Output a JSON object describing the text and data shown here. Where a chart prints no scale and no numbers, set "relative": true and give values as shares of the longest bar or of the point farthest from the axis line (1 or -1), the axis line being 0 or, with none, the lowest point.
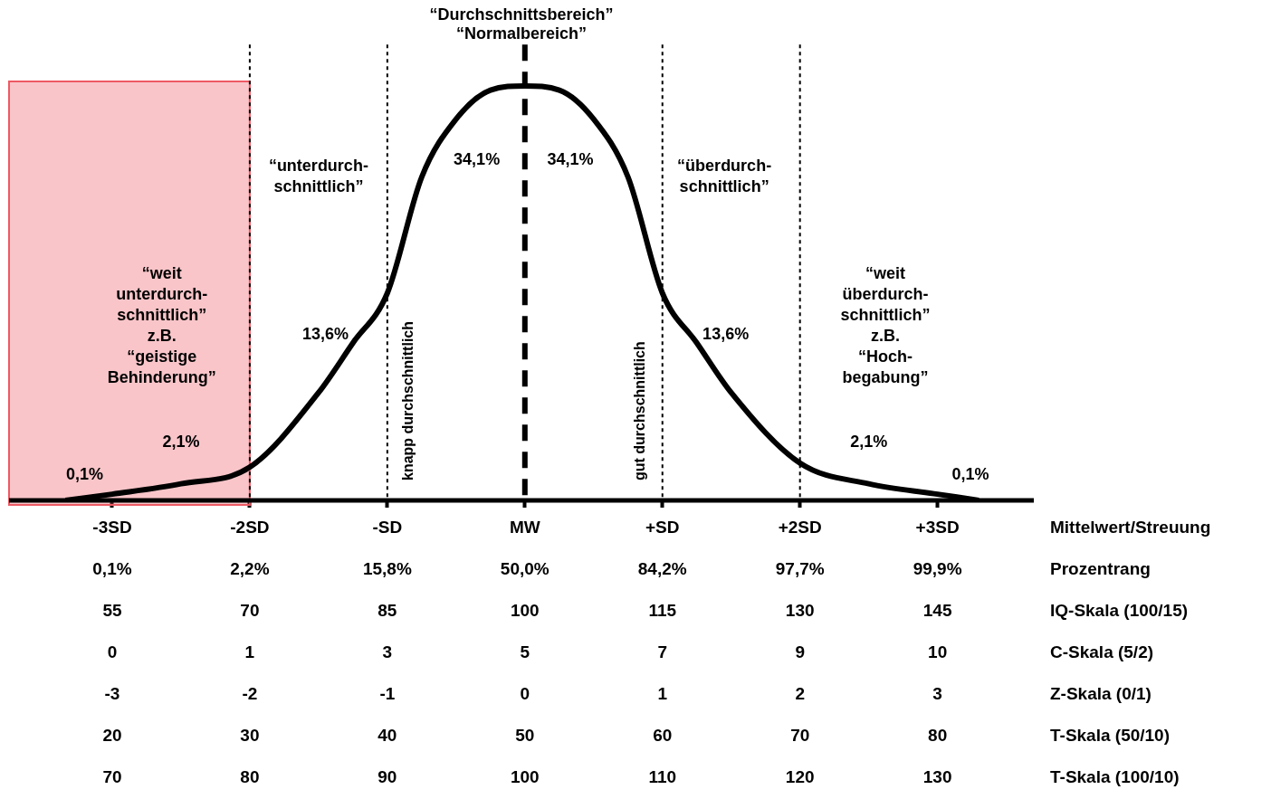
{
  "chart_data": {
    "type": "line",
    "relative": true,
    "title": "“Durchschnittsbereich”\n“Normalbereich”",
    "xlabel": "Mittelwert/Streuung",
    "xlim": [
      -3.75,
      3.7
    ],
    "xticks": [
      {
        "value": -3,
        "label": "-3SD"
      },
      {
        "value": -2,
        "label": "-2SD"
      },
      {
        "value": -1,
        "label": "-SD"
      },
      {
        "value": 0,
        "label": "MW"
      },
      {
        "value": 1,
        "label": "+SD"
      },
      {
        "value": 2,
        "label": "+2SD"
      },
      {
        "value": 3,
        "label": "+3SD"
      }
    ],
    "series": [
      {
        "color": "#000000",
        "x": [
          -3.34,
          -3,
          -2.5,
          -2,
          -1.5,
          -1.25,
          -1,
          -0.75,
          -0.5,
          -0.25,
          0,
          0.25,
          0.5,
          0.75,
          1,
          1.25,
          1.5,
          2,
          2.5,
          3,
          3.3
        ],
        "values": [
          0,
          0.015,
          0.04,
          0.08,
          0.26,
          0.38,
          0.5,
          0.78,
          0.92,
          0.99,
          1,
          0.99,
          0.92,
          0.78,
          0.5,
          0.38,
          0.26,
          0.09,
          0.04,
          0.015,
          0
        ]
      }
    ],
    "ref_lines": [
      {
        "axis": "x",
        "value": -2,
        "line_style": "dotted"
      },
      {
        "axis": "x",
        "value": -1,
        "line_style": "dotted",
        "label": "knapp durchschnittlich"
      },
      {
        "axis": "x",
        "value": 0,
        "line_style": "dashed"
      },
      {
        "axis": "x",
        "value": 1,
        "line_style": "dotted",
        "label": "gut durchschnittlich"
      },
      {
        "axis": "x",
        "value": 2,
        "line_style": "dotted"
      }
    ],
    "bands": [
      {
        "axis": "x",
        "from": -3.75,
        "to": -2,
        "color": "#ee5a64"
      }
    ],
    "annotations": [
      "34,1%",
      "34,1%",
      "13,6%",
      "13,6%",
      "2,1%",
      "2,1%",
      "0,1%",
      "0,1%",
      "“unterdurch-\nschnittlich”",
      "“überdurch-\nschnittlich”",
      "“weit\nunterdurch-\nschnittlich”\nz.B.\n“geistige\nBehinderung”",
      "“weit\nüberdurch-\nschnittlich”\nz.B.\n“Hoch-\nbegabung”",
      "0,1%",
      "2,2%",
      "15,8%",
      "50,0%",
      "84,2%",
      "97,7%",
      "99,9%",
      "Prozentrang",
      "55",
      "70",
      "85",
      "100",
      "115",
      "130",
      "145",
      "IQ-Skala (100/15)",
      "0",
      "1",
      "3",
      "5",
      "7",
      "9",
      "10",
      "C-Skala (5/2)",
      "-3",
      "-2",
      "-1",
      "0",
      "1",
      "2",
      "3",
      "Z-Skala (0/1)",
      "20",
      "30",
      "40",
      "50",
      "60",
      "70",
      "80",
      "T-Skala (50/10)",
      "70",
      "80",
      "90",
      "100",
      "110",
      "120",
      "130",
      "T-Skala (100/10)"
    ],
    "grid": false,
    "legend": false,
    "marker": "none",
    "line_style": "solid"
  }
}
